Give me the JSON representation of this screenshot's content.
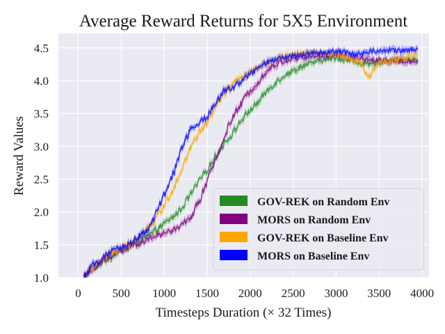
{
  "chart_data": {
    "type": "line",
    "title": "Average Reward Returns for 5X5 Environment",
    "xlabel": "Timesteps Duration (× 32 Times)",
    "ylabel": "Reward Values",
    "xlim": [
      -230,
      4080
    ],
    "ylim": [
      1.0,
      4.72
    ],
    "xticks": [
      0,
      500,
      1000,
      1500,
      2000,
      2500,
      3000,
      3500,
      4000
    ],
    "yticks": [
      1.0,
      1.5,
      2.0,
      2.5,
      3.0,
      3.5,
      4.0,
      4.5
    ],
    "xtick_labels": [
      "0",
      "500",
      "1000",
      "1500",
      "2000",
      "2500",
      "3000",
      "3500",
      "4000"
    ],
    "ytick_labels": [
      "1.0",
      "1.5",
      "2.0",
      "2.5",
      "3.0",
      "3.5",
      "4.0",
      "4.5"
    ],
    "grid": true,
    "legend_position": "lower-right",
    "background": "#eaeaf2",
    "series": [
      {
        "name": "GOV-REK on Random Env",
        "color": "#228b22",
        "x": [
          60,
          200,
          400,
          600,
          800,
          900,
          1000,
          1100,
          1200,
          1300,
          1400,
          1500,
          1600,
          1700,
          1800,
          1900,
          2000,
          2100,
          2200,
          2300,
          2400,
          2500,
          2600,
          2700,
          2800,
          2900,
          3000,
          3100,
          3200,
          3300,
          3400,
          3500,
          3600,
          3700,
          3800,
          3900,
          3950
        ],
        "y": [
          1.0,
          1.17,
          1.35,
          1.47,
          1.62,
          1.72,
          1.82,
          1.92,
          2.05,
          2.25,
          2.45,
          2.65,
          2.85,
          3.05,
          3.2,
          3.4,
          3.55,
          3.68,
          3.85,
          3.98,
          4.08,
          4.15,
          4.22,
          4.26,
          4.3,
          4.33,
          4.35,
          4.32,
          4.3,
          4.26,
          4.24,
          4.28,
          4.3,
          4.32,
          4.32,
          4.32,
          4.32
        ]
      },
      {
        "name": "MORS on Random Env",
        "color": "#800080",
        "x": [
          60,
          200,
          400,
          600,
          800,
          900,
          1000,
          1100,
          1200,
          1300,
          1400,
          1500,
          1600,
          1700,
          1800,
          1900,
          2000,
          2100,
          2200,
          2300,
          2400,
          2500,
          2600,
          2700,
          2800,
          2900,
          3000,
          3100,
          3200,
          3300,
          3400,
          3500,
          3600,
          3700,
          3800,
          3900,
          3950
        ],
        "y": [
          1.0,
          1.17,
          1.35,
          1.47,
          1.58,
          1.63,
          1.68,
          1.72,
          1.8,
          1.9,
          2.15,
          2.45,
          2.8,
          3.15,
          3.45,
          3.65,
          3.85,
          4.0,
          4.15,
          4.25,
          4.3,
          4.33,
          4.35,
          4.36,
          4.37,
          4.38,
          4.38,
          4.38,
          4.35,
          4.34,
          4.32,
          4.32,
          4.3,
          4.32,
          4.28,
          4.3,
          4.3
        ]
      },
      {
        "name": "GOV-REK on Baseline Env",
        "color": "#ffa500",
        "x": [
          60,
          200,
          400,
          600,
          800,
          900,
          1000,
          1100,
          1200,
          1300,
          1400,
          1500,
          1600,
          1700,
          1800,
          1900,
          2000,
          2100,
          2200,
          2300,
          2400,
          2500,
          2600,
          2700,
          2800,
          2900,
          3000,
          3100,
          3200,
          3300,
          3380,
          3450,
          3500,
          3600,
          3700,
          3800,
          3900,
          3950
        ],
        "y": [
          1.0,
          1.2,
          1.38,
          1.5,
          1.75,
          1.9,
          2.1,
          2.35,
          2.65,
          2.95,
          3.2,
          3.35,
          3.6,
          3.8,
          3.95,
          4.05,
          4.12,
          4.2,
          4.28,
          4.33,
          4.37,
          4.4,
          4.42,
          4.42,
          4.43,
          4.4,
          4.4,
          4.36,
          4.32,
          4.25,
          4.02,
          4.2,
          4.28,
          4.3,
          4.32,
          4.35,
          4.38,
          4.38
        ]
      },
      {
        "name": "MORS on Baseline Env",
        "color": "#0000ff",
        "x": [
          60,
          200,
          400,
          600,
          800,
          900,
          1000,
          1100,
          1200,
          1300,
          1400,
          1500,
          1600,
          1700,
          1800,
          1900,
          2000,
          2100,
          2200,
          2300,
          2400,
          2500,
          2600,
          2700,
          2800,
          2900,
          3000,
          3100,
          3200,
          3300,
          3400,
          3500,
          3600,
          3700,
          3800,
          3900,
          3950
        ],
        "y": [
          1.0,
          1.22,
          1.4,
          1.52,
          1.72,
          1.95,
          2.25,
          2.55,
          2.95,
          3.25,
          3.35,
          3.45,
          3.65,
          3.85,
          3.9,
          4.0,
          4.1,
          4.2,
          4.28,
          4.32,
          4.35,
          4.38,
          4.4,
          4.42,
          4.42,
          4.43,
          4.45,
          4.43,
          4.4,
          4.42,
          4.45,
          4.46,
          4.47,
          4.45,
          4.47,
          4.47,
          4.48
        ]
      }
    ]
  }
}
